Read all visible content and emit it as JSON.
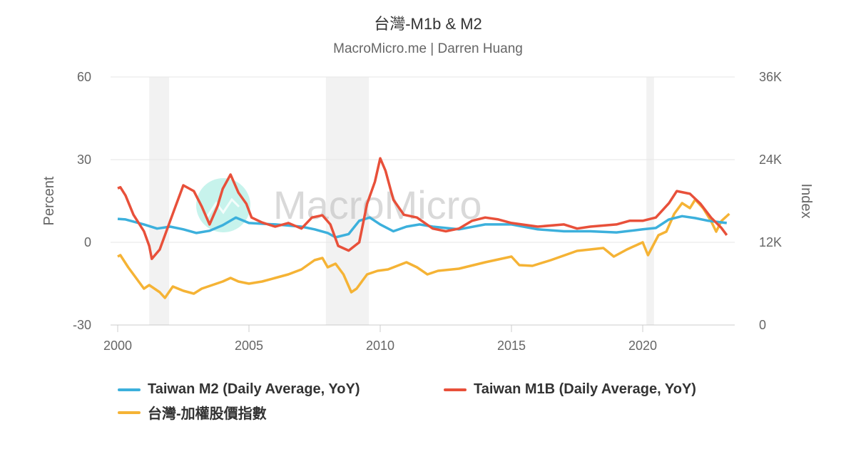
{
  "chart_data": {
    "type": "line",
    "title": "台灣-M1b & M2",
    "subtitle": "MacroMicro.me | Darren Huang",
    "watermark": "MacroMicro",
    "xlabel": "",
    "xlim": [
      2000,
      2023.4
    ],
    "xticks": [
      "2000",
      "2005",
      "2010",
      "2015",
      "2020"
    ],
    "y_left": {
      "label": "Percent",
      "lim": [
        -30,
        60
      ],
      "ticks": [
        "-30",
        "0",
        "30",
        "60"
      ]
    },
    "y_right": {
      "label": "Index",
      "lim": [
        0,
        36000
      ],
      "ticks": [
        "0",
        "12K",
        "24K",
        "36K"
      ]
    },
    "grid": true,
    "legend_position": "bottom",
    "shaded_periods": [
      [
        2001.2,
        2001.96
      ],
      [
        2007.93,
        2009.57
      ],
      [
        2020.14,
        2020.43
      ]
    ],
    "series": [
      {
        "name": "Taiwan M2 (Daily Average, YoY)",
        "axis": "left",
        "color": "#3cb0dc",
        "x": [
          2000,
          2000.3,
          2001,
          2001.5,
          2002,
          2002.5,
          2003,
          2003.5,
          2004,
          2004.5,
          2005,
          2006,
          2007,
          2007.5,
          2008,
          2008.3,
          2008.8,
          2009.2,
          2009.6,
          2010,
          2010.5,
          2011,
          2011.5,
          2012,
          2013,
          2014,
          2015,
          2016,
          2017,
          2018,
          2019,
          2020,
          2020.5,
          2021,
          2021.5,
          2022,
          2022.5,
          2023.2
        ],
        "y": [
          8.5,
          8.3,
          6.5,
          5,
          5.7,
          4.7,
          3.4,
          4.2,
          6.2,
          9,
          7,
          6.5,
          5.7,
          4.7,
          3.4,
          1.8,
          3,
          7.8,
          9,
          6.5,
          4,
          5.7,
          6.5,
          5.7,
          4.7,
          6.5,
          6.5,
          4.7,
          4,
          4,
          3.6,
          4.7,
          5.2,
          8.3,
          9.5,
          8.8,
          7.8,
          7
        ]
      },
      {
        "name": "Taiwan M1B (Daily Average, YoY)",
        "axis": "left",
        "color": "#e8503a",
        "x": [
          2000,
          2000.1,
          2000.3,
          2000.6,
          2001,
          2001.2,
          2001.3,
          2001.6,
          2002,
          2002.2,
          2002.5,
          2002.9,
          2003.2,
          2003.5,
          2003.8,
          2004,
          2004.3,
          2004.6,
          2004.9,
          2005.1,
          2005.5,
          2006,
          2006.5,
          2007,
          2007.4,
          2007.8,
          2008.1,
          2008.4,
          2008.8,
          2009.2,
          2009.5,
          2009.8,
          2010,
          2010.2,
          2010.5,
          2010.9,
          2011.4,
          2012,
          2012.5,
          2013,
          2013.5,
          2014,
          2014.5,
          2015,
          2016,
          2017,
          2017.5,
          2018,
          2019,
          2019.5,
          2020,
          2020.5,
          2021,
          2021.3,
          2021.8,
          2022.2,
          2022.6,
          2023,
          2023.2
        ],
        "y": [
          19.6,
          20,
          17,
          10,
          4,
          -1.3,
          -6,
          -2.6,
          7.8,
          13,
          20.7,
          18.6,
          13,
          6.5,
          13,
          19.4,
          24.6,
          18,
          14,
          9,
          7.2,
          5.7,
          7,
          5,
          9,
          9.8,
          6.5,
          -1.3,
          -3,
          0,
          14,
          22,
          30.5,
          26,
          15.5,
          10,
          9,
          5,
          4,
          5,
          7.8,
          9,
          8.3,
          7,
          5.7,
          6.5,
          5,
          5.7,
          6.5,
          7.8,
          7.8,
          9,
          14.2,
          18.6,
          17.6,
          14,
          9,
          5.2,
          2.6
        ]
      },
      {
        "name": "台灣-加權股價指數",
        "axis": "right",
        "color": "#f5b335",
        "x": [
          2000,
          2000.1,
          2000.4,
          2000.8,
          2001,
          2001.2,
          2001.6,
          2001.8,
          2002.1,
          2002.5,
          2002.9,
          2003.2,
          2003.6,
          2004,
          2004.3,
          2004.6,
          2005,
          2005.5,
          2006,
          2006.5,
          2007,
          2007.5,
          2007.8,
          2008,
          2008.3,
          2008.6,
          2008.9,
          2009.1,
          2009.5,
          2009.9,
          2010.3,
          2011,
          2011.4,
          2011.8,
          2012.2,
          2013,
          2014,
          2015,
          2015.3,
          2015.8,
          2016.5,
          2017.5,
          2018.5,
          2018.9,
          2019.4,
          2020,
          2020.2,
          2020.6,
          2020.9,
          2021.2,
          2021.5,
          2021.8,
          2022,
          2022.3,
          2022.6,
          2022.8,
          2023,
          2023.3
        ],
        "y": [
          9930,
          10140,
          8380,
          6310,
          5280,
          5790,
          4760,
          3930,
          5590,
          4970,
          4550,
          5280,
          5790,
          6310,
          6830,
          6310,
          6000,
          6310,
          6830,
          7340,
          8070,
          9410,
          9720,
          8380,
          8900,
          7340,
          4760,
          5280,
          7340,
          7860,
          8070,
          9100,
          8380,
          7340,
          7860,
          8170,
          9100,
          9930,
          8690,
          8590,
          9410,
          10760,
          11170,
          9930,
          10970,
          12000,
          10140,
          13030,
          13550,
          16140,
          17690,
          16970,
          18200,
          16970,
          15100,
          13550,
          15100,
          16140
        ]
      }
    ]
  }
}
